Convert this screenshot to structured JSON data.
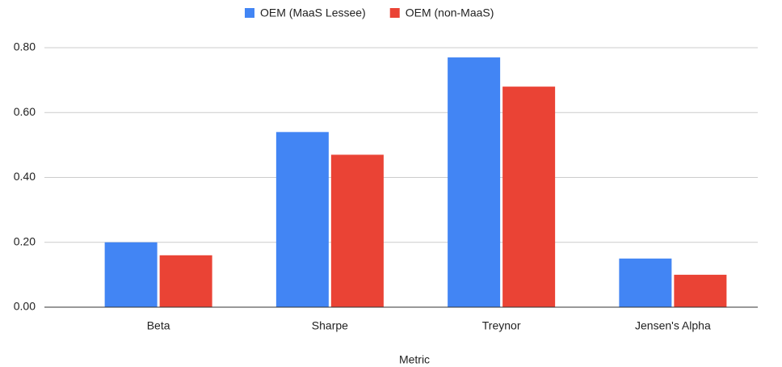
{
  "chart_data": {
    "type": "bar",
    "x_label": "Metric",
    "categories": [
      "Beta",
      "Sharpe",
      "Treynor",
      "Jensen's Alpha"
    ],
    "series": [
      {
        "name": "OEM (MaaS Lessee)",
        "color": "#4285f4",
        "values": [
          0.2,
          0.54,
          0.77,
          0.15
        ]
      },
      {
        "name": "OEM (non-MaaS)",
        "color": "#ea4335",
        "values": [
          0.16,
          0.47,
          0.68,
          0.1
        ]
      }
    ],
    "ylim": [
      0,
      0.8
    ],
    "yticks": [
      {
        "value": 0,
        "label": "0.00"
      },
      {
        "value": 0.2,
        "label": "0.20"
      },
      {
        "value": 0.4,
        "label": "0.40"
      },
      {
        "value": 0.6,
        "label": "0.60"
      },
      {
        "value": 0.8,
        "label": "0.80"
      }
    ],
    "grid": true,
    "legend": "top"
  }
}
